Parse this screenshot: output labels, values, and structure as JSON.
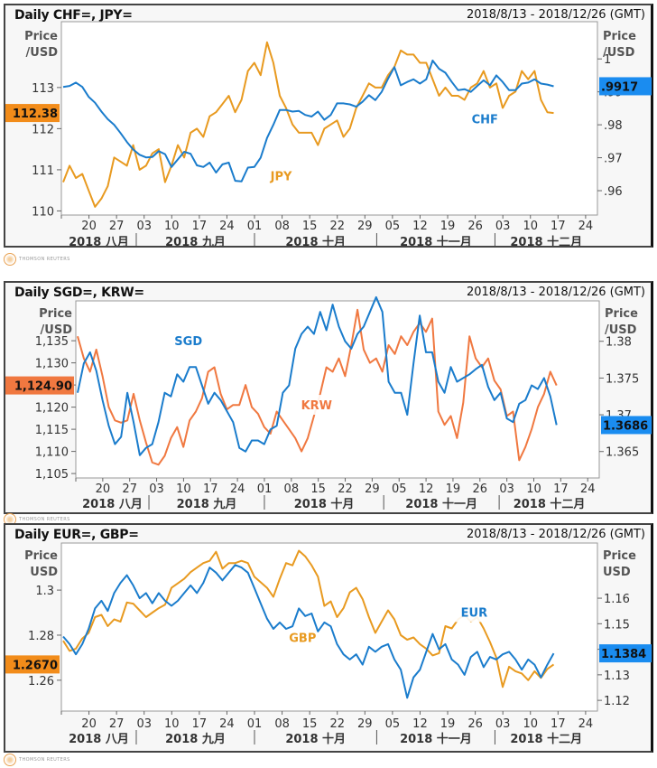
{
  "brand": {
    "name": "THOMSON REUTERS",
    "icon": "thomson-reuters-logo-icon"
  },
  "chart_data": [
    {
      "type": "line",
      "title": "Daily CHF=, JPY=",
      "date_range": "2018/8/13 - 2018/12/26 (GMT)",
      "x_ticks": [
        "20",
        "27",
        "03",
        "10",
        "17",
        "24",
        "01",
        "08",
        "15",
        "22",
        "29",
        "05",
        "12",
        "19",
        "26",
        "03",
        "10",
        "17",
        "24"
      ],
      "months": [
        "2018 八月",
        "2018 九月",
        "2018 十月",
        "2018 十一月",
        "2018 十二月"
      ],
      "left_axis": {
        "title": [
          "Price",
          "/USD"
        ],
        "ticks": [
          "110",
          "111",
          "112",
          "113"
        ],
        "range": [
          109.9,
          114.6
        ],
        "badge": "112.38",
        "badge_color": "#f28c1a",
        "badge_value": 112.38
      },
      "right_axis": {
        "title": [
          "Price",
          "/USD"
        ],
        "ticks": [
          ".96",
          ".97",
          ".98",
          ".99",
          "1"
        ],
        "tick_values": [
          0.96,
          0.97,
          0.98,
          0.99,
          1.0
        ],
        "range": [
          0.9526,
          1.0113
        ],
        "badge": ".9917",
        "badge_color": "#1a8cf0",
        "badge_value": 0.9917
      },
      "series": [
        {
          "name": "JPY",
          "axis": "left",
          "color": "#e89a20",
          "label_pos": [
            0.41,
            110.75
          ],
          "values": [
            110.7,
            111.1,
            110.8,
            110.9,
            110.5,
            110.1,
            110.3,
            110.6,
            111.3,
            111.2,
            111.1,
            111.6,
            111.0,
            111.1,
            111.4,
            111.5,
            110.7,
            111.1,
            111.6,
            111.3,
            111.9,
            112.0,
            111.8,
            112.3,
            112.4,
            112.6,
            112.8,
            112.4,
            112.7,
            113.4,
            113.6,
            113.3,
            114.1,
            113.6,
            112.8,
            112.5,
            112.1,
            111.9,
            111.9,
            111.9,
            111.6,
            112.0,
            112.1,
            112.2,
            111.8,
            112.0,
            112.5,
            112.8,
            113.1,
            113.0,
            113.0,
            113.3,
            113.5,
            113.9,
            113.8,
            113.8,
            113.6,
            113.6,
            113.2,
            112.8,
            113.0,
            112.8,
            112.8,
            112.7,
            113.0,
            113.1,
            113.4,
            113.0,
            113.1,
            112.5,
            112.8,
            112.9,
            113.4,
            113.2,
            113.4,
            112.7,
            112.4,
            112.38
          ]
        },
        {
          "name": "CHF",
          "axis": "right",
          "color": "#1a7ccc",
          "label_pos": [
            0.79,
            0.9805
          ],
          "values": [
            0.9915,
            0.9918,
            0.9928,
            0.9915,
            0.9885,
            0.9867,
            0.984,
            0.9817,
            0.98,
            0.9775,
            0.9748,
            0.9725,
            0.9709,
            0.9701,
            0.9702,
            0.972,
            0.9711,
            0.9672,
            0.9695,
            0.9718,
            0.9712,
            0.9677,
            0.9672,
            0.9685,
            0.9655,
            0.968,
            0.9685,
            0.963,
            0.9628,
            0.967,
            0.9672,
            0.97,
            0.976,
            0.98,
            0.9845,
            0.9845,
            0.984,
            0.9842,
            0.983,
            0.9825,
            0.984,
            0.9815,
            0.983,
            0.9865,
            0.9865,
            0.9862,
            0.9855,
            0.987,
            0.989,
            0.9875,
            0.99,
            0.994,
            0.9975,
            0.992,
            0.993,
            0.9938,
            0.9925,
            0.9938,
            0.9995,
            0.997,
            0.9958,
            0.993,
            0.9905,
            0.9908,
            0.99,
            0.9918,
            0.9935,
            0.992,
            0.995,
            0.993,
            0.9905,
            0.9905,
            0.9925,
            0.9928,
            0.9938,
            0.9925,
            0.9922,
            0.9917
          ]
        }
      ]
    },
    {
      "type": "line",
      "title": "Daily SGD=, KRW=",
      "date_range": "2018/8/13 - 2018/12/26 (GMT)",
      "x_ticks": [
        "20",
        "27",
        "03",
        "10",
        "17",
        "24",
        "01",
        "08",
        "15",
        "22",
        "29",
        "05",
        "12",
        "19",
        "26",
        "03",
        "10",
        "17",
        "24"
      ],
      "months": [
        "2018 八月",
        "2018 九月",
        "2018 十月",
        "2018 十一月",
        "2018 十二月"
      ],
      "left_axis": {
        "title": [
          "Price",
          "/USD"
        ],
        "ticks": [
          "1,105",
          "1,110",
          "1,115",
          "1,120",
          "1,125",
          "1,130",
          "1,135"
        ],
        "tick_values": [
          1105,
          1110,
          1115,
          1120,
          1125,
          1130,
          1135
        ],
        "range": [
          1104.0,
          1144.0
        ],
        "badge": "1,124.90",
        "badge_color": "#f07840",
        "badge_value": 1124.9
      },
      "right_axis": {
        "title": [
          "Price",
          "/USD"
        ],
        "ticks": [
          "1.365",
          "1.37",
          "1.375",
          "1.38"
        ],
        "tick_values": [
          1.365,
          1.37,
          1.375,
          1.38
        ],
        "range": [
          1.3614,
          1.3855
        ],
        "badge": "1.3686",
        "badge_color": "#1a8cf0",
        "badge_value": 1.3686
      },
      "series": [
        {
          "name": "KRW",
          "axis": "left",
          "color": "#f07840",
          "label_pos": [
            0.46,
            1119.5
          ],
          "values": [
            1136,
            1131,
            1128,
            1133,
            1127,
            1120,
            1117,
            1116.5,
            1117,
            1123,
            1117,
            1112,
            1107.5,
            1107,
            1109,
            1113,
            1115.5,
            1111,
            1117,
            1119,
            1122,
            1128,
            1129,
            1123,
            1119.5,
            1120.5,
            1120.5,
            1125,
            1120,
            1118.5,
            1115.5,
            1114,
            1119,
            1117,
            1115,
            1113,
            1110,
            1113,
            1118,
            1123,
            1129,
            1128,
            1131,
            1127,
            1134,
            1142,
            1133,
            1130,
            1131,
            1128,
            1134,
            1132,
            1136,
            1134,
            1137,
            1139,
            1137,
            1140,
            1119,
            1116,
            1118,
            1113,
            1121,
            1136,
            1131,
            1129,
            1131,
            1126,
            1124,
            1118,
            1119,
            1108,
            1111,
            1115,
            1120,
            1123,
            1128,
            1124.9
          ]
        },
        {
          "name": "SGD",
          "axis": "right",
          "color": "#1a7ccc",
          "label_pos": [
            0.215,
            1.3795
          ],
          "values": [
            1.373,
            1.377,
            1.3785,
            1.376,
            1.372,
            1.3685,
            1.366,
            1.367,
            1.373,
            1.369,
            1.3645,
            1.3655,
            1.366,
            1.369,
            1.373,
            1.3725,
            1.3755,
            1.3745,
            1.3765,
            1.3765,
            1.374,
            1.3715,
            1.373,
            1.372,
            1.3705,
            1.369,
            1.3655,
            1.365,
            1.3665,
            1.3665,
            1.366,
            1.368,
            1.3685,
            1.373,
            1.374,
            1.379,
            1.381,
            1.382,
            1.381,
            1.384,
            1.3815,
            1.385,
            1.382,
            1.38,
            1.379,
            1.381,
            1.382,
            1.384,
            1.386,
            1.384,
            1.3745,
            1.373,
            1.373,
            1.37,
            1.377,
            1.3835,
            1.3785,
            1.3785,
            1.3745,
            1.373,
            1.3765,
            1.3745,
            1.375,
            1.3755,
            1.3762,
            1.3768,
            1.3738,
            1.372,
            1.373,
            1.3695,
            1.369,
            1.3715,
            1.372,
            1.374,
            1.3735,
            1.375,
            1.3725,
            1.3686
          ]
        }
      ]
    },
    {
      "type": "line",
      "title": "Daily EUR=, GBP=",
      "date_range": "2018/8/13 - 2018/12/26 (GMT)",
      "x_ticks": [
        "20",
        "27",
        "03",
        "10",
        "17",
        "24",
        "01",
        "08",
        "15",
        "22",
        "29",
        "05",
        "12",
        "19",
        "26",
        "03",
        "10",
        "17",
        "24"
      ],
      "months": [
        "2018 八月",
        "2018 九月",
        "2018 十月",
        "2018 十一月",
        "2018 十二月"
      ],
      "left_axis": {
        "title": [
          "Price",
          "USD"
        ],
        "ticks": [
          "1.26",
          "1.28",
          "1.3"
        ],
        "tick_values": [
          1.26,
          1.28,
          1.3
        ],
        "range": [
          1.2463,
          1.3209
        ],
        "badge": "1.2670",
        "badge_color": "#f28c1a",
        "badge_value": 1.267
      },
      "right_axis": {
        "title": [
          "Price",
          "USD"
        ],
        "ticks": [
          "1.12",
          "1.13",
          "1.14",
          "1.15",
          "1.16"
        ],
        "tick_values": [
          1.12,
          1.13,
          1.14,
          1.15,
          1.16
        ],
        "range": [
          1.1158,
          1.1816
        ],
        "badge": "1.1384",
        "badge_color": "#1a8cf0",
        "badge_value": 1.1384
      },
      "series": [
        {
          "name": "GBP",
          "axis": "left",
          "color": "#e89a20",
          "label_pos": [
            0.45,
            1.277
          ],
          "values": [
            1.2775,
            1.273,
            1.274,
            1.2785,
            1.281,
            1.288,
            1.289,
            1.284,
            1.287,
            1.286,
            1.2945,
            1.294,
            1.291,
            1.288,
            1.29,
            1.292,
            1.2935,
            1.301,
            1.303,
            1.305,
            1.308,
            1.31,
            1.312,
            1.313,
            1.317,
            1.3095,
            1.312,
            1.312,
            1.313,
            1.312,
            1.306,
            1.3035,
            1.301,
            1.297,
            1.305,
            1.312,
            1.311,
            1.3175,
            1.315,
            1.311,
            1.306,
            1.293,
            1.295,
            1.288,
            1.292,
            1.299,
            1.301,
            1.296,
            1.288,
            1.281,
            1.286,
            1.291,
            1.287,
            1.28,
            1.278,
            1.279,
            1.276,
            1.274,
            1.271,
            1.272,
            1.284,
            1.283,
            1.287,
            1.289,
            1.286,
            1.288,
            1.283,
            1.277,
            1.27,
            1.257,
            1.266,
            1.264,
            1.263,
            1.26,
            1.264,
            1.261,
            1.265,
            1.267
          ]
        },
        {
          "name": "EUR",
          "axis": "right",
          "color": "#1a7ccc",
          "label_pos": [
            0.77,
            1.1528
          ],
          "values": [
            1.145,
            1.142,
            1.138,
            1.142,
            1.148,
            1.156,
            1.159,
            1.155,
            1.162,
            1.166,
            1.169,
            1.165,
            1.16,
            1.162,
            1.158,
            1.162,
            1.159,
            1.157,
            1.159,
            1.162,
            1.165,
            1.162,
            1.166,
            1.172,
            1.17,
            1.167,
            1.17,
            1.173,
            1.172,
            1.17,
            1.164,
            1.158,
            1.152,
            1.148,
            1.1505,
            1.148,
            1.149,
            1.156,
            1.153,
            1.154,
            1.147,
            1.1505,
            1.149,
            1.142,
            1.138,
            1.136,
            1.138,
            1.134,
            1.141,
            1.139,
            1.141,
            1.142,
            1.136,
            1.132,
            1.121,
            1.129,
            1.132,
            1.139,
            1.146,
            1.14,
            1.142,
            1.136,
            1.134,
            1.13,
            1.137,
            1.139,
            1.133,
            1.137,
            1.136,
            1.138,
            1.139,
            1.136,
            1.132,
            1.136,
            1.134,
            1.129,
            1.134,
            1.1384
          ]
        }
      ]
    }
  ]
}
